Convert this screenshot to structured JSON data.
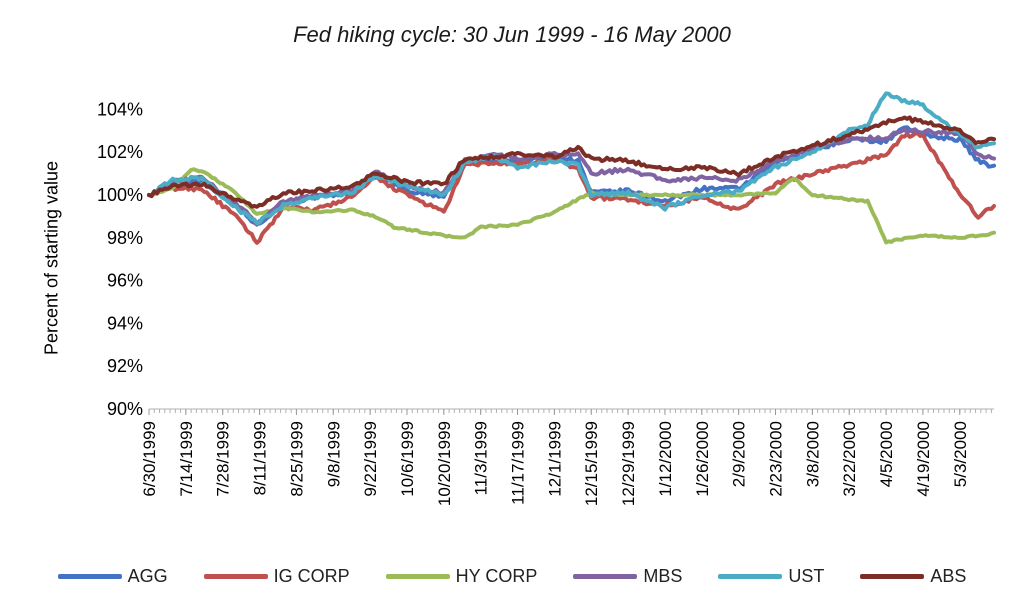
{
  "chart_data": {
    "type": "line",
    "title": "Fed hiking cycle: 30 Jun 1999 - 16 May 2000",
    "ylabel": "Percent of starting value",
    "xlabel": "",
    "ylim": [
      90,
      105
    ],
    "yticks": [
      "90%",
      "92%",
      "94%",
      "96%",
      "98%",
      "100%",
      "102%",
      "104%"
    ],
    "ytick_values": [
      90,
      92,
      94,
      96,
      98,
      100,
      102,
      104
    ],
    "xticks": [
      "6/30/1999",
      "7/14/1999",
      "7/28/1999",
      "8/11/1999",
      "8/25/1999",
      "9/8/1999",
      "9/22/1999",
      "10/6/1999",
      "10/20/1999",
      "11/3/1999",
      "11/17/1999",
      "12/1/1999",
      "12/15/1999",
      "12/29/1999",
      "1/12/2000",
      "1/26/2000",
      "2/9/2000",
      "2/23/2000",
      "3/8/2000",
      "3/22/2000",
      "4/5/2000",
      "4/19/2000",
      "5/3/2000"
    ],
    "x_end": "5/16/2000",
    "grid": false,
    "legend_position": "bottom",
    "series": [
      {
        "name": "AGG",
        "color": "#4472C4",
        "x": [
          "6/30/1999",
          "7/9/1999",
          "7/20/1999",
          "8/2/1999",
          "8/10/1999",
          "8/20/1999",
          "9/1/1999",
          "9/15/1999",
          "9/24/1999",
          "10/6/1999",
          "10/20/1999",
          "10/28/1999",
          "11/8/1999",
          "11/17/1999",
          "12/1/1999",
          "12/10/1999",
          "12/15/1999",
          "12/29/1999",
          "1/12/2000",
          "1/26/2000",
          "2/9/2000",
          "2/23/2000",
          "3/8/2000",
          "3/22/2000",
          "4/5/2000",
          "4/12/2000",
          "4/19/2000",
          "5/3/2000",
          "5/10/2000",
          "5/16/2000"
        ],
        "values": [
          100,
          100.5,
          100.7,
          99.5,
          98.6,
          99.6,
          99.9,
          100.1,
          101.0,
          100.2,
          99.9,
          101.5,
          101.6,
          101.6,
          101.8,
          101.6,
          100.1,
          100.2,
          99.7,
          100.3,
          100.3,
          101.5,
          102.1,
          102.6,
          102.5,
          103.2,
          102.8,
          102.6,
          101.6,
          101.3
        ]
      },
      {
        "name": "IG CORP",
        "color": "#C0504D",
        "x": [
          "6/30/1999",
          "7/9/1999",
          "7/20/1999",
          "8/2/1999",
          "8/10/1999",
          "8/20/1999",
          "9/1/1999",
          "9/15/1999",
          "9/24/1999",
          "10/6/1999",
          "10/20/1999",
          "10/28/1999",
          "11/8/1999",
          "11/17/1999",
          "12/1/1999",
          "12/10/1999",
          "12/15/1999",
          "12/29/1999",
          "1/12/2000",
          "1/26/2000",
          "2/9/2000",
          "2/23/2000",
          "3/8/2000",
          "3/22/2000",
          "4/5/2000",
          "4/12/2000",
          "4/19/2000",
          "5/3/2000",
          "5/10/2000",
          "5/16/2000"
        ],
        "values": [
          100,
          100.3,
          100.3,
          99.0,
          97.8,
          99.4,
          99.3,
          99.9,
          100.8,
          100.0,
          99.2,
          101.4,
          101.5,
          101.4,
          101.7,
          101.2,
          99.9,
          99.8,
          99.5,
          99.9,
          99.3,
          100.5,
          101.0,
          101.4,
          101.9,
          102.8,
          102.8,
          100.0,
          99.0,
          99.5
        ]
      },
      {
        "name": "HY CORP",
        "color": "#9BBB59",
        "x": [
          "6/30/1999",
          "7/9/1999",
          "7/16/1999",
          "7/22/1999",
          "8/2/1999",
          "8/10/1999",
          "8/20/1999",
          "9/1/1999",
          "9/15/1999",
          "9/24/1999",
          "10/1/1999",
          "10/20/1999",
          "10/28/1999",
          "11/3/1999",
          "11/17/1999",
          "12/1/1999",
          "12/10/1999",
          "12/15/1999",
          "12/29/1999",
          "1/12/2000",
          "1/26/2000",
          "2/9/2000",
          "2/23/2000",
          "3/1/2000",
          "3/8/2000",
          "3/22/2000",
          "3/29/2000",
          "4/5/2000",
          "4/19/2000",
          "5/3/2000",
          "5/16/2000"
        ],
        "values": [
          100,
          100.3,
          101.2,
          101.0,
          100.1,
          99.1,
          99.4,
          99.2,
          99.3,
          99.0,
          98.5,
          98.1,
          98.0,
          98.5,
          98.6,
          99.2,
          99.8,
          100.1,
          100.0,
          100.0,
          100.0,
          100.0,
          100.1,
          100.8,
          100.0,
          99.8,
          99.7,
          97.8,
          98.1,
          98.0,
          98.2
        ]
      },
      {
        "name": "MBS",
        "color": "#8064A2",
        "x": [
          "6/30/1999",
          "7/9/1999",
          "7/20/1999",
          "8/2/1999",
          "8/10/1999",
          "8/20/1999",
          "9/1/1999",
          "9/15/1999",
          "9/24/1999",
          "10/6/1999",
          "10/20/1999",
          "10/28/1999",
          "11/8/1999",
          "11/17/1999",
          "12/1/1999",
          "12/10/1999",
          "12/15/1999",
          "12/29/1999",
          "1/12/2000",
          "1/26/2000",
          "2/9/2000",
          "2/23/2000",
          "3/8/2000",
          "3/22/2000",
          "4/5/2000",
          "4/12/2000",
          "4/19/2000",
          "5/3/2000",
          "5/10/2000",
          "5/16/2000"
        ],
        "values": [
          100,
          100.6,
          100.8,
          99.6,
          98.7,
          99.7,
          100.0,
          100.2,
          101.1,
          100.4,
          100.1,
          101.6,
          101.9,
          101.7,
          101.9,
          101.9,
          101.0,
          101.2,
          100.7,
          100.8,
          100.7,
          101.6,
          102.2,
          102.6,
          102.7,
          103.0,
          103.0,
          102.9,
          101.9,
          101.7
        ]
      },
      {
        "name": "UST",
        "color": "#4BACC6",
        "x": [
          "6/30/1999",
          "7/9/1999",
          "7/20/1999",
          "8/2/1999",
          "8/10/1999",
          "8/20/1999",
          "9/1/1999",
          "9/15/1999",
          "9/24/1999",
          "10/6/1999",
          "10/20/1999",
          "10/28/1999",
          "11/8/1999",
          "11/17/1999",
          "12/1/1999",
          "12/10/1999",
          "12/15/1999",
          "12/29/1999",
          "1/12/2000",
          "1/26/2000",
          "2/9/2000",
          "2/23/2000",
          "3/8/2000",
          "3/22/2000",
          "3/29/2000",
          "4/5/2000",
          "4/12/2000",
          "4/19/2000",
          "5/3/2000",
          "5/10/2000",
          "5/16/2000"
        ],
        "values": [
          100,
          100.7,
          100.8,
          99.4,
          98.7,
          99.5,
          99.9,
          100.1,
          100.9,
          100.4,
          100.0,
          101.5,
          101.8,
          101.3,
          101.6,
          101.4,
          100.0,
          100.1,
          99.4,
          100.0,
          100.2,
          101.3,
          102.0,
          103.0,
          103.3,
          104.8,
          104.4,
          104.2,
          102.8,
          102.2,
          102.5
        ]
      },
      {
        "name": "ABS",
        "color": "#7B2D26",
        "x": [
          "6/30/1999",
          "7/9/1999",
          "7/20/1999",
          "8/2/1999",
          "8/10/1999",
          "8/20/1999",
          "9/1/1999",
          "9/15/1999",
          "9/24/1999",
          "10/6/1999",
          "10/20/1999",
          "10/28/1999",
          "11/8/1999",
          "11/17/1999",
          "12/1/1999",
          "12/10/1999",
          "12/15/1999",
          "12/29/1999",
          "1/12/2000",
          "1/26/2000",
          "2/9/2000",
          "2/23/2000",
          "3/8/2000",
          "3/22/2000",
          "4/5/2000",
          "4/12/2000",
          "4/19/2000",
          "5/3/2000",
          "5/10/2000",
          "5/16/2000"
        ],
        "values": [
          100,
          100.4,
          100.5,
          99.8,
          99.4,
          100.1,
          100.2,
          100.4,
          101.0,
          100.6,
          100.5,
          101.7,
          101.8,
          101.9,
          101.8,
          102.2,
          101.7,
          101.6,
          101.2,
          101.3,
          101.0,
          101.8,
          102.3,
          102.8,
          103.4,
          103.6,
          103.4,
          103.0,
          102.4,
          102.6
        ]
      }
    ]
  }
}
